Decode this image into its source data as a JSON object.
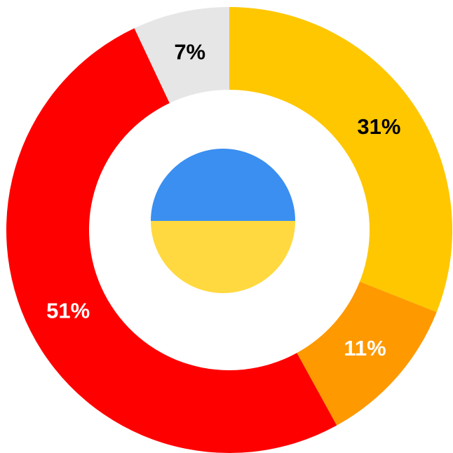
{
  "chart_data": {
    "type": "donut",
    "values": [
      31,
      11,
      51,
      7
    ],
    "value_labels": [
      "31%",
      "11%",
      "51%",
      "7%"
    ],
    "colors": [
      "#ffc700",
      "#ff9900",
      "#ff0000",
      "#e6e6e6"
    ],
    "label_colors": [
      "#000000",
      "#ffffff",
      "#ffffff",
      "#000000"
    ]
  }
}
